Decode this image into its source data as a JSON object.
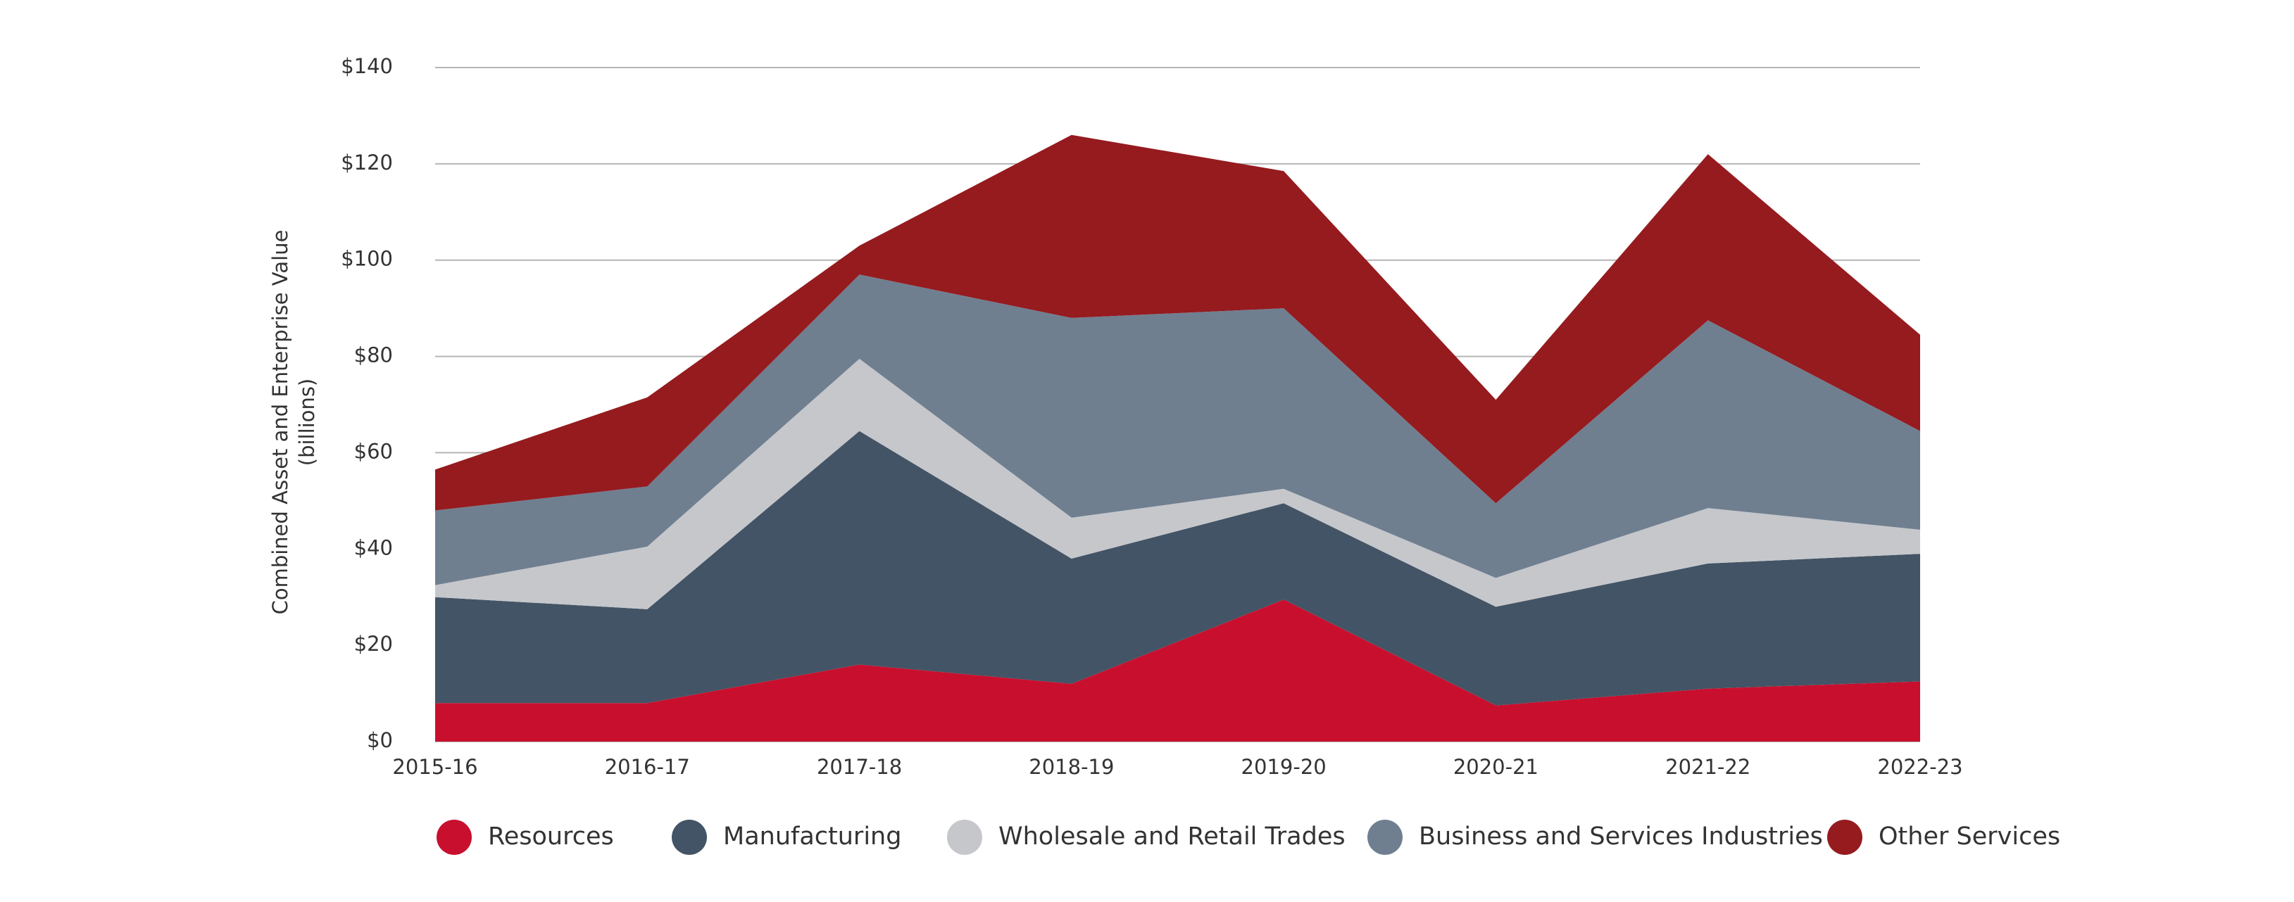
{
  "chart_data": {
    "type": "stacked_area",
    "y_axis_label": "Combined Asset and Enterprise Value\n(billions)",
    "categories": [
      "2015-16",
      "2016-17",
      "2017-18",
      "2018-19",
      "2019-20",
      "2020-21",
      "2021-22",
      "2022-23"
    ],
    "series": [
      {
        "name": "Resources",
        "color": "#c8102e",
        "values": [
          8,
          8,
          16,
          12,
          29.5,
          7.5,
          11,
          12.5
        ]
      },
      {
        "name": "Manufacturing",
        "color": "#435466",
        "values": [
          22,
          19.5,
          48.5,
          26,
          20,
          20.5,
          26,
          26.5
        ]
      },
      {
        "name": "Wholesale and Retail Trades",
        "color": "#c6c7cb",
        "values": [
          2.5,
          13,
          15,
          8.5,
          3,
          6,
          11.5,
          5
        ]
      },
      {
        "name": "Business and Services Industries",
        "color": "#6f7f90",
        "values": [
          15.5,
          12.5,
          17.5,
          41.5,
          37.5,
          15.5,
          39,
          20.5
        ]
      },
      {
        "name": "Other Services",
        "color": "#951b1f",
        "values": [
          8.5,
          18.5,
          6,
          38,
          28.5,
          21.5,
          34.5,
          20
        ]
      }
    ],
    "ylim": [
      0,
      140
    ],
    "yticks": [
      {
        "value": 0,
        "label": "$0"
      },
      {
        "value": 20,
        "label": "$20"
      },
      {
        "value": 40,
        "label": "$40"
      },
      {
        "value": 60,
        "label": "$60"
      },
      {
        "value": 80,
        "label": "$80"
      },
      {
        "value": 100,
        "label": "$100"
      },
      {
        "value": 120,
        "label": "$120"
      },
      {
        "value": 140,
        "label": "$140"
      }
    ],
    "grid": true,
    "legend": "bottom"
  }
}
